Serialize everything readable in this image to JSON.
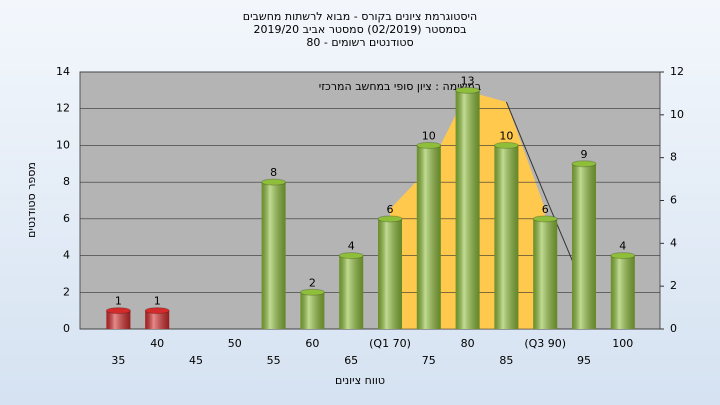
{
  "chart_data": {
    "type": "bar",
    "title": [
      "היסטוגרמת ציונים בקורס - מבוא לרשתות מחשבים",
      "בסמסטר  (02/2019)  סמסטר אביב 2019/20",
      "סטודנטים רשומים - 80"
    ],
    "annotation": "במשימה : ציון סופי במחשב המרכזי",
    "y_label": "מספר סטודנטים",
    "x_label": "טווח ציונים",
    "categories": [
      "35",
      "40",
      "45",
      "50",
      "55",
      "60",
      "65",
      "(Q1 70)",
      "75",
      "80",
      "85",
      "(Q3 90)",
      "95",
      "100"
    ],
    "values": [
      1,
      1,
      null,
      null,
      8,
      2,
      4,
      6,
      10,
      13,
      10,
      6,
      9,
      4
    ],
    "colors": [
      "#d42a2a",
      "#d42a2a",
      null,
      null,
      "#8fbf3a",
      "#8fbf3a",
      "#8fbf3a",
      "#8fbf3a",
      "#8fbf3a",
      "#8fbf3a",
      "#8fbf3a",
      "#8fbf3a",
      "#8fbf3a",
      "#8fbf3a"
    ],
    "area": {
      "color": "#ffc94d",
      "axis": "y2",
      "values": [
        null,
        null,
        null,
        null,
        null,
        null,
        null,
        5.6,
        7.5,
        11.1,
        10.6,
        5.6,
        null,
        null
      ]
    },
    "line": {
      "color": "#333333",
      "axis": "y2",
      "values": [
        null,
        null,
        null,
        null,
        null,
        null,
        null,
        null,
        null,
        null,
        10.6,
        6.2,
        1.9,
        null
      ]
    },
    "ylim": [
      0,
      14
    ],
    "yticks": [
      0,
      2,
      4,
      6,
      8,
      10,
      12,
      14
    ],
    "y2lim": [
      0,
      12
    ],
    "y2ticks": [
      0,
      2,
      4,
      6,
      8,
      10,
      12
    ],
    "grid": true
  }
}
